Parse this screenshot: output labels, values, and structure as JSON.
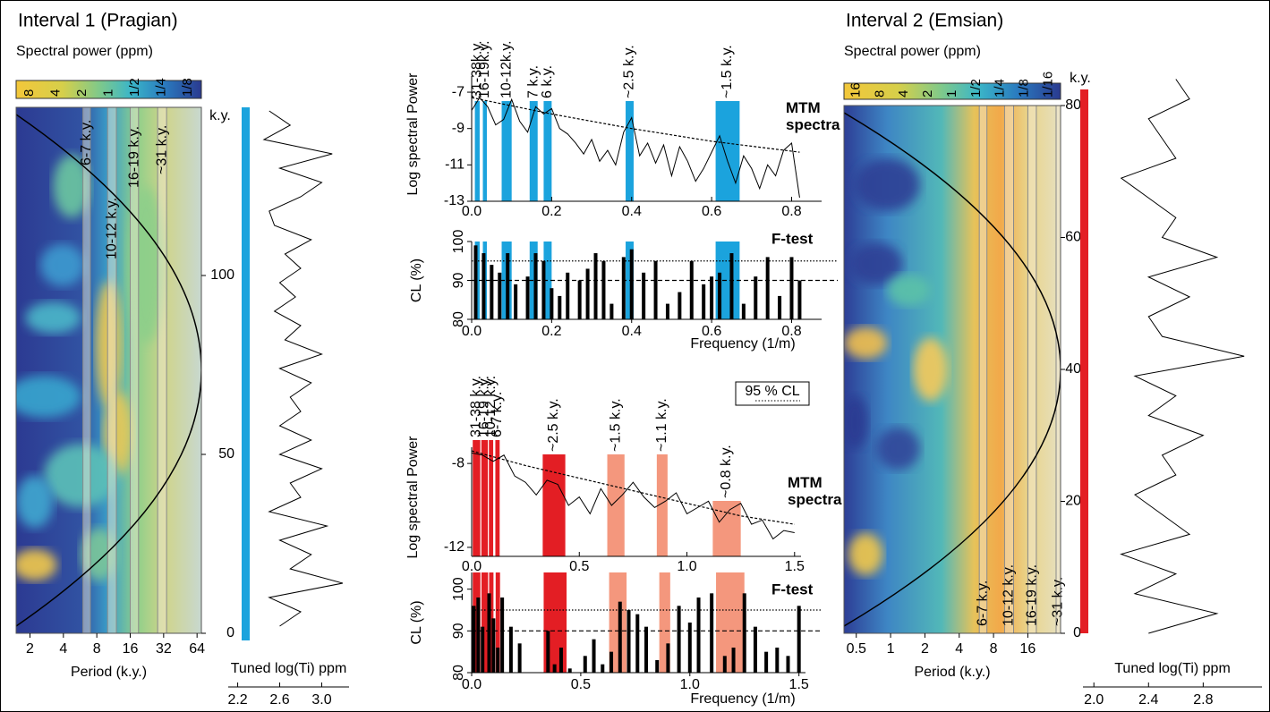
{
  "chart_data": [
    {
      "type": "wavelet",
      "title": "Interval 1 (Pragian)",
      "colorbar": {
        "label": "Spectral power (ppm)",
        "ticks": [
          "8",
          "4",
          "2",
          "1",
          "1/2",
          "1/4",
          "1/8"
        ]
      },
      "xlabel": "Period (k.y.)",
      "xlog": true,
      "xlim": [
        1.5,
        70
      ],
      "xticks": [
        2,
        4,
        8,
        16,
        32,
        64
      ],
      "ylabel": "k.y.",
      "ylim": [
        0,
        147
      ],
      "yticks": [
        0,
        50,
        100
      ],
      "bands": [
        {
          "label": "6-7 k.y.",
          "range": [
            6,
            7
          ]
        },
        {
          "label": "10-12 k.y.",
          "range": [
            10,
            12
          ]
        },
        {
          "label": "16-19 k.y.",
          "range": [
            16,
            19
          ]
        },
        {
          "label": "~31 k.y.",
          "range": [
            31,
            31
          ]
        }
      ]
    },
    {
      "type": "profile",
      "xlabel": "Tuned log(Ti) ppm",
      "xlim": [
        2.11,
        3.26
      ],
      "xticks": [
        2.2,
        2.6,
        {
          "value": 3,
          "label": "3.0"
        }
      ],
      "ylim": [
        0,
        147
      ],
      "bar_color": "#1ba3dd",
      "color": "#000000",
      "age": [
        2,
        6,
        10,
        14,
        18,
        22,
        26,
        30,
        34,
        38,
        42,
        46,
        50,
        54,
        58,
        62,
        66,
        70,
        74,
        78,
        82,
        86,
        90,
        94,
        98,
        102,
        106,
        110,
        114,
        118,
        122,
        126,
        130,
        134,
        138,
        142,
        146
      ],
      "values": [
        2.6,
        2.8,
        2.5,
        3.2,
        2.7,
        2.9,
        2.6,
        3.05,
        2.5,
        2.8,
        2.7,
        3.0,
        2.6,
        2.9,
        2.6,
        2.8,
        2.7,
        2.9,
        2.6,
        3.0,
        2.65,
        2.8,
        2.55,
        2.75,
        2.6,
        2.8,
        2.65,
        2.9,
        2.55,
        2.5,
        2.8,
        3.0,
        2.6,
        3.1,
        2.45,
        2.7,
        2.5
      ]
    },
    {
      "type": "spectrum",
      "title": "MTM spectra",
      "ylabel": "Log spectral Power",
      "xlim": [
        0,
        0.875
      ],
      "xticks": [
        {
          "value": 0,
          "label": "0.0"
        },
        0.2,
        0.4,
        0.6,
        0.8
      ],
      "ylim": [
        -13,
        -5.62
      ],
      "yticks": [
        -7,
        -9,
        -11,
        -13
      ],
      "bands": [
        {
          "label": "31-38k.y.",
          "range": [
            0.008,
            0.02
          ],
          "color": "#1ba3dd"
        },
        {
          "label": "16-19k.y.",
          "range": [
            0.028,
            0.038
          ],
          "color": "#1ba3dd"
        },
        {
          "label": "10-12k.y.",
          "range": [
            0.075,
            0.1
          ],
          "color": "#1ba3dd"
        },
        {
          "label": "7 k.y.",
          "range": [
            0.145,
            0.165
          ],
          "color": "#1ba3dd"
        },
        {
          "label": "6 k.y.",
          "range": [
            0.18,
            0.2
          ],
          "color": "#1ba3dd"
        },
        {
          "label": "~2.5 k.y.",
          "range": [
            0.385,
            0.405
          ],
          "color": "#1ba3dd"
        },
        {
          "label": "~1.5 k.y.",
          "range": [
            0.61,
            0.67
          ],
          "color": "#1ba3dd"
        }
      ],
      "series": [
        {
          "color": "#000000",
          "x": [
            0,
            0.02,
            0.04,
            0.06,
            0.08,
            0.1,
            0.12,
            0.14,
            0.16,
            0.18,
            0.2,
            0.22,
            0.24,
            0.26,
            0.28,
            0.3,
            0.32,
            0.34,
            0.36,
            0.38,
            0.4,
            0.42,
            0.44,
            0.46,
            0.48,
            0.5,
            0.52,
            0.54,
            0.56,
            0.58,
            0.6,
            0.62,
            0.64,
            0.66,
            0.68,
            0.7,
            0.72,
            0.74,
            0.76,
            0.78,
            0.8,
            0.82
          ],
          "values": [
            -8.0,
            -7.3,
            -7.8,
            -8.8,
            -8.5,
            -7.4,
            -8.6,
            -9.2,
            -7.8,
            -8.2,
            -7.9,
            -9.0,
            -9.3,
            -9.8,
            -10.4,
            -9.6,
            -10.8,
            -10.2,
            -11.0,
            -9.2,
            -8.4,
            -10.5,
            -9.8,
            -10.9,
            -9.9,
            -11.6,
            -10.0,
            -10.8,
            -11.9,
            -11.2,
            -10.3,
            -9.4,
            -10.8,
            -12.0,
            -10.5,
            -11.2,
            -12.3,
            -11.0,
            -11.6,
            -10.2,
            -9.8,
            -12.8
          ]
        },
        {
          "color": "#000000",
          "dash": true,
          "x": [
            0,
            0.2,
            0.4,
            0.6,
            0.82
          ],
          "values": [
            -7.3,
            -8.2,
            -9.0,
            -9.7,
            -10.3
          ]
        }
      ]
    },
    {
      "type": "ftest",
      "title": "F-test",
      "ylabel": "CL (%)",
      "xlabel": "Frequency (1/m)",
      "xlim": [
        0,
        0.875
      ],
      "xticks": [
        {
          "value": 0,
          "label": "0.0"
        },
        0.2,
        0.4,
        0.6,
        0.8
      ],
      "ylim": [
        80,
        100
      ],
      "yticks": [
        80,
        90,
        100
      ],
      "color": "#000000",
      "x": [
        0.01,
        0.03,
        0.05,
        0.07,
        0.09,
        0.11,
        0.14,
        0.16,
        0.18,
        0.2,
        0.22,
        0.24,
        0.27,
        0.29,
        0.31,
        0.33,
        0.35,
        0.38,
        0.4,
        0.43,
        0.46,
        0.49,
        0.52,
        0.55,
        0.58,
        0.6,
        0.62,
        0.65,
        0.68,
        0.71,
        0.74,
        0.77,
        0.8,
        0.82
      ],
      "values": [
        99,
        97,
        94,
        92,
        97,
        89,
        91,
        97,
        95,
        88,
        86,
        92,
        90,
        93,
        97,
        95,
        84,
        96,
        98,
        92,
        95,
        84,
        87,
        95,
        89,
        91,
        92,
        97,
        84,
        91,
        96,
        86,
        96,
        90
      ],
      "ref_lines": [
        {
          "value": 95,
          "style": "dotted"
        },
        {
          "value": 90,
          "style": "dashed"
        }
      ]
    },
    {
      "type": "spectrum",
      "title": "MTM spectra",
      "ylabel": "Log spectral Power",
      "xlim": [
        0,
        1.53
      ],
      "xticks": [
        {
          "value": 0,
          "label": "0.0"
        },
        0.5,
        {
          "value": 1,
          "label": "1.0"
        },
        1.5
      ],
      "ylim": [
        -12.43,
        -6.8
      ],
      "yticks": [
        -8,
        -12
      ],
      "bands": [
        {
          "label": "31-38 k.y.",
          "range": [
            0.005,
            0.04
          ],
          "color": "#e31e24"
        },
        {
          "label": "16-19 k.y.",
          "range": [
            0.045,
            0.075
          ],
          "color": "#e31e24"
        },
        {
          "label": "10-12 k.y.",
          "range": [
            0.08,
            0.1
          ],
          "color": "#e31e24"
        },
        {
          "label": "6-7 k.y.",
          "range": [
            0.11,
            0.13
          ],
          "color": "#e31e24"
        },
        {
          "label": "~2.5 k.y.",
          "range": [
            0.33,
            0.435
          ],
          "color": "#e31e24"
        },
        {
          "label": "~1.5 k.y.",
          "range": [
            0.63,
            0.71
          ],
          "color": "#f4977d"
        },
        {
          "label": "~1.1 k.y.",
          "range": [
            0.86,
            0.91
          ],
          "color": "#f4977d"
        },
        {
          "label": "~0.8 k.y.",
          "range": [
            1.12,
            1.25
          ],
          "color": "#f4977d"
        }
      ],
      "series": [
        {
          "color": "#000000",
          "x": [
            0,
            0.05,
            0.1,
            0.15,
            0.2,
            0.25,
            0.3,
            0.35,
            0.4,
            0.45,
            0.5,
            0.55,
            0.6,
            0.65,
            0.7,
            0.75,
            0.8,
            0.85,
            0.9,
            0.95,
            1.0,
            1.05,
            1.1,
            1.15,
            1.2,
            1.25,
            1.3,
            1.35,
            1.4,
            1.45,
            1.5
          ],
          "values": [
            -7.5,
            -7.6,
            -7.9,
            -7.6,
            -8.6,
            -8.9,
            -9.5,
            -8.8,
            -9.0,
            -10.0,
            -9.6,
            -10.4,
            -9.2,
            -10.0,
            -9.5,
            -8.9,
            -9.6,
            -10.1,
            -9.8,
            -9.4,
            -10.4,
            -10.1,
            -9.8,
            -10.8,
            -10.2,
            -9.9,
            -10.9,
            -10.7,
            -11.6,
            -11.2,
            -11.3
          ]
        },
        {
          "color": "#000000",
          "dash": true,
          "x": [
            0,
            0.25,
            0.5,
            0.75,
            1.0,
            1.25,
            1.5
          ],
          "values": [
            -7.4,
            -8.1,
            -8.7,
            -9.3,
            -9.9,
            -10.5,
            -10.9
          ]
        }
      ]
    },
    {
      "type": "ftest",
      "title": "F-test",
      "ylabel": "CL (%)",
      "xlabel": "Frequency (1/m)",
      "xlim": [
        0,
        1.53
      ],
      "xticks": [
        {
          "value": 0,
          "label": "0.0"
        },
        0.5,
        {
          "value": 1,
          "label": "1.0"
        },
        1.5
      ],
      "ylim": [
        80,
        104
      ],
      "yticks": [
        80,
        90,
        100
      ],
      "color": "#000000",
      "x": [
        0.01,
        0.03,
        0.05,
        0.08,
        0.1,
        0.12,
        0.14,
        0.18,
        0.22,
        0.35,
        0.38,
        0.41,
        0.45,
        0.52,
        0.56,
        0.6,
        0.64,
        0.68,
        0.72,
        0.76,
        0.8,
        0.85,
        0.9,
        0.95,
        1.0,
        1.04,
        1.1,
        1.16,
        1.2,
        1.25,
        1.3,
        1.35,
        1.4,
        1.45,
        1.5
      ],
      "values": [
        96,
        98,
        91,
        99,
        93,
        86,
        98,
        91,
        87,
        90,
        82,
        86,
        81,
        84,
        88,
        82,
        85,
        97,
        95,
        94,
        91,
        83,
        87,
        96,
        92,
        98,
        99,
        84,
        86,
        99,
        91,
        85,
        86,
        84,
        96
      ],
      "ref_lines": [
        {
          "value": 95,
          "style": "dotted",
          "name": "95 % CL"
        },
        {
          "value": 90,
          "style": "dashed"
        }
      ]
    },
    {
      "type": "wavelet",
      "title": "Interval 2 (Emsian)",
      "colorbar": {
        "label": "Spectral power (ppm)",
        "ticks": [
          "16",
          "8",
          "4",
          "2",
          "1",
          "1/2",
          "1/4",
          "1/8",
          "1/16"
        ]
      },
      "xlabel": "Period (k.y.)",
      "xlog": true,
      "xlim": [
        0.39,
        31
      ],
      "xticks": [
        0.5,
        1,
        2,
        4,
        8,
        16
      ],
      "ylabel": "k.y.",
      "ylim": [
        0,
        80
      ],
      "yticks": [
        0,
        20,
        40,
        60,
        80
      ],
      "bands": [
        {
          "label": "6-7 k.y.",
          "range": [
            6,
            7
          ]
        },
        {
          "label": "10-12 k.y.",
          "range": [
            10,
            12
          ]
        },
        {
          "label": "16-19 k.y.",
          "range": [
            16,
            19
          ]
        },
        {
          "label": "~31 k.y.",
          "range": [
            31,
            31
          ]
        }
      ]
    },
    {
      "type": "profile",
      "xlabel": "Tuned log(Ti) ppm",
      "xlim": [
        1.92,
        3.23
      ],
      "xticks": [
        {
          "value": 2,
          "label": "2.0"
        },
        2.4,
        2.8
      ],
      "ylim": [
        0,
        80
      ],
      "bar_color": "#e31e24",
      "color": "#000000",
      "age": [
        0,
        3,
        6,
        9,
        12,
        15,
        18,
        21,
        24,
        27,
        30,
        33,
        36,
        39,
        42,
        45,
        48,
        51,
        54,
        57,
        60,
        63,
        66,
        69,
        72,
        75,
        78,
        81,
        84
      ],
      "values": [
        2.4,
        2.9,
        2.3,
        2.6,
        2.2,
        2.7,
        2.5,
        2.3,
        2.6,
        2.5,
        2.8,
        2.4,
        2.6,
        2.3,
        3.1,
        2.5,
        2.4,
        2.7,
        2.4,
        2.9,
        2.5,
        2.6,
        2.4,
        2.2,
        2.6,
        2.5,
        2.4,
        2.7,
        2.6
      ]
    }
  ]
}
